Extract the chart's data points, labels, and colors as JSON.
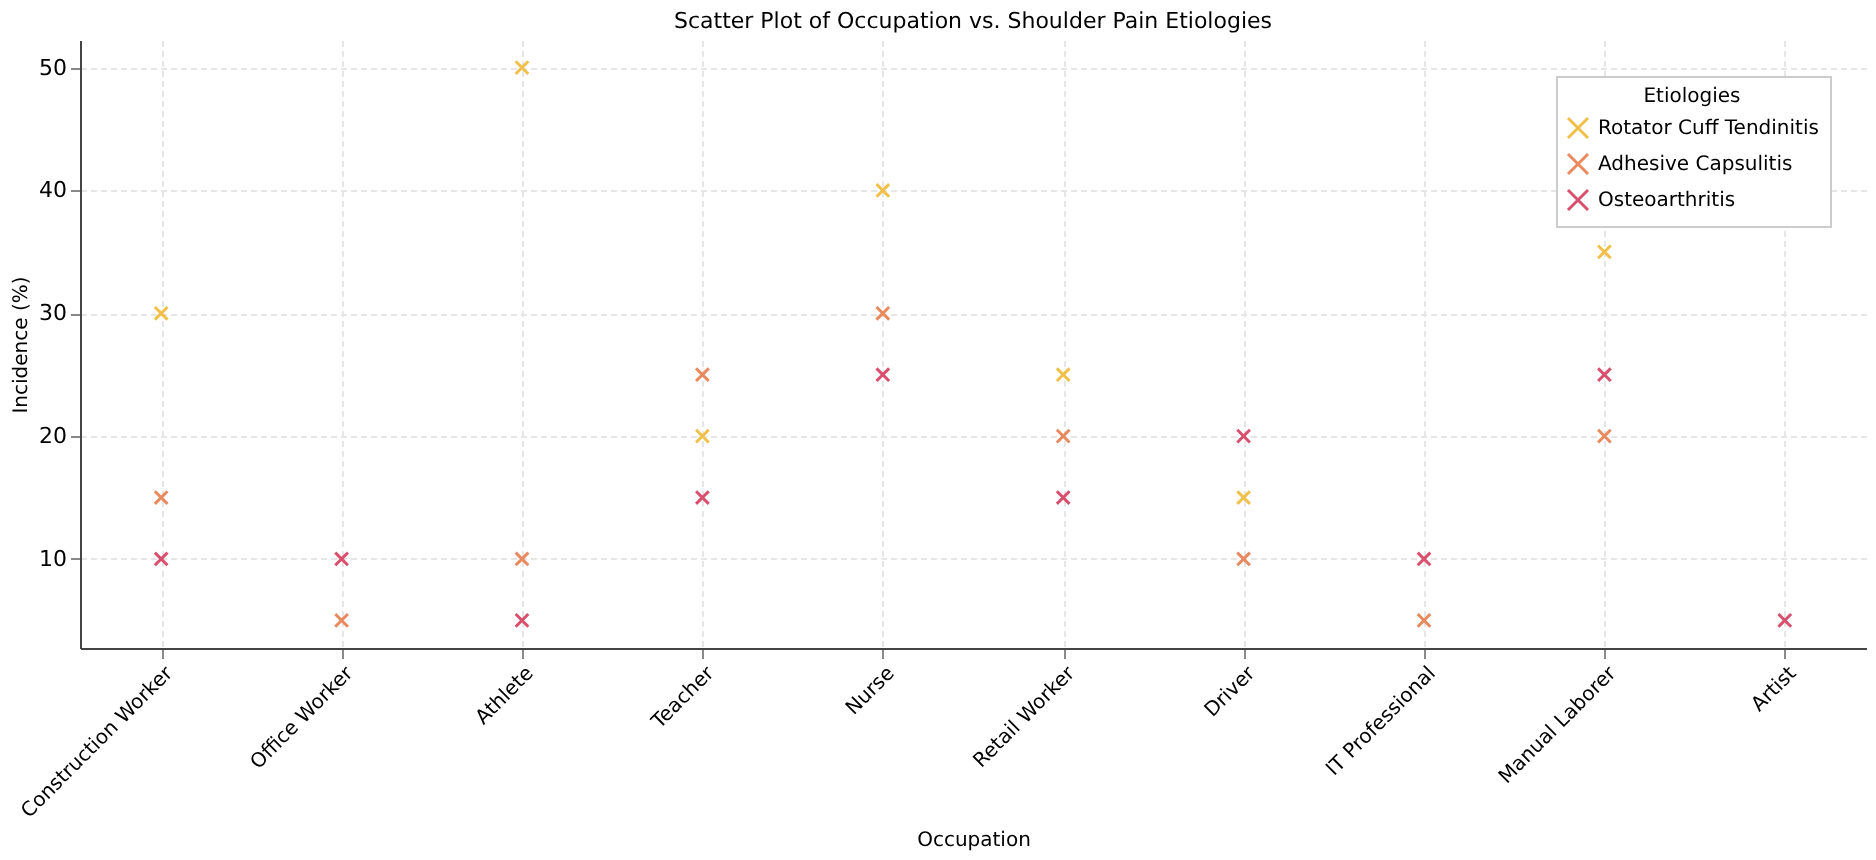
{
  "chart_data": {
    "type": "scatter",
    "title": "Scatter Plot of Occupation vs. Shoulder Pain Etiologies",
    "xlabel": "Occupation",
    "ylabel": "Incidence (%)",
    "legend_title": "Etiologies",
    "categories": [
      "Construction Worker",
      "Office Worker",
      "Athlete",
      "Teacher",
      "Nurse",
      "Retail Worker",
      "Driver",
      "IT Professional",
      "Manual Laborer",
      "Artist"
    ],
    "series": [
      {
        "name": "Rotator Cuff Tendinitis",
        "color": "#f0c04a",
        "values": [
          30,
          null,
          50,
          20,
          40,
          25,
          15,
          null,
          35,
          null
        ]
      },
      {
        "name": "Adhesive Capsulitis",
        "color": "#e8895e",
        "values": [
          15,
          5,
          10,
          25,
          30,
          20,
          10,
          5,
          20,
          null
        ]
      },
      {
        "name": "Osteoarthritis",
        "color": "#d9506f",
        "values": [
          10,
          10,
          5,
          15,
          25,
          15,
          20,
          10,
          25,
          5
        ]
      }
    ],
    "ylim": [
      2.75,
      52.25
    ],
    "yticks": [
      10,
      20,
      30,
      40,
      50
    ],
    "grid": true,
    "legend": "top right",
    "marker": "cross"
  }
}
